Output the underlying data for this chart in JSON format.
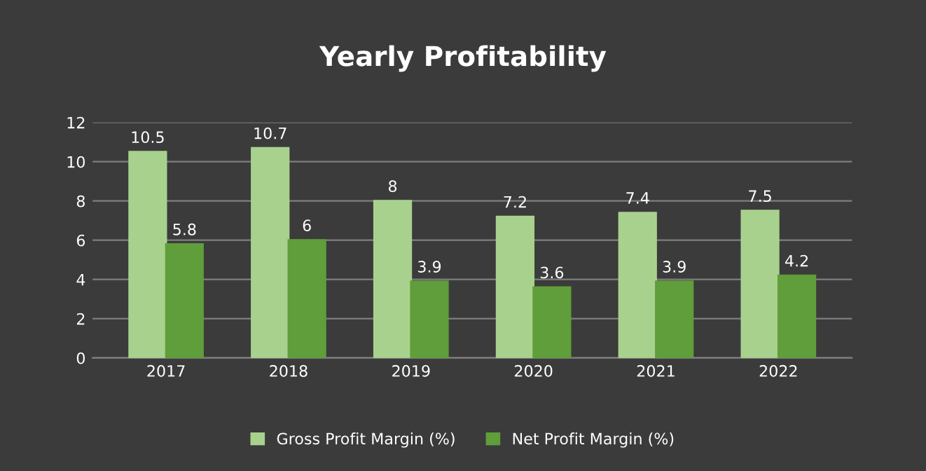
{
  "chart_data": {
    "type": "bar",
    "title": "Yearly Profitability",
    "categories": [
      "2017",
      "2018",
      "2019",
      "2020",
      "2021",
      "2022"
    ],
    "series": [
      {
        "name": "Gross Profit Margin (%)",
        "color": "#a9d18e",
        "values": [
          10.5,
          10.7,
          8,
          7.2,
          7.4,
          7.5
        ]
      },
      {
        "name": "Net Profit Margin (%)",
        "color": "#5f9e3a",
        "values": [
          5.8,
          6,
          3.9,
          3.6,
          3.9,
          4.2
        ]
      }
    ],
    "ylim": [
      0,
      12
    ],
    "yticks": [
      0,
      2,
      4,
      6,
      8,
      10,
      12
    ],
    "grid": "y",
    "legend": "bottom",
    "data_labels": true
  }
}
